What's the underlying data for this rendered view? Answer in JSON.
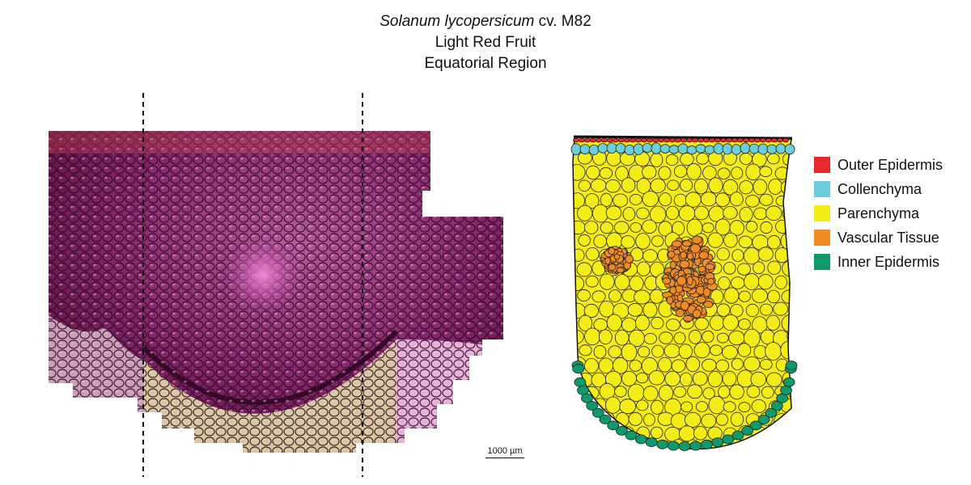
{
  "title": {
    "species": "Solanum lycopersicum",
    "cultivar": " cv. M82",
    "line2": "Light Red Fruit",
    "line3": "Equatorial Region"
  },
  "legend": {
    "items": [
      {
        "label": "Outer Epidermis",
        "color": "#e8282e"
      },
      {
        "label": "Collenchyma",
        "color": "#6ccddb"
      },
      {
        "label": "Parenchyma",
        "color": "#f4ec17"
      },
      {
        "label": "Vascular Tissue",
        "color": "#f08a24"
      },
      {
        "label": "Inner Epidermis",
        "color": "#0e9a6c"
      }
    ]
  },
  "scalebar": {
    "label": "1000 µm"
  },
  "colors": {
    "tissue_dark": "#5a1040",
    "tissue_mid": "#8a2a6e",
    "tissue_light": "#b55a9a",
    "cell_outline": "#222222"
  }
}
